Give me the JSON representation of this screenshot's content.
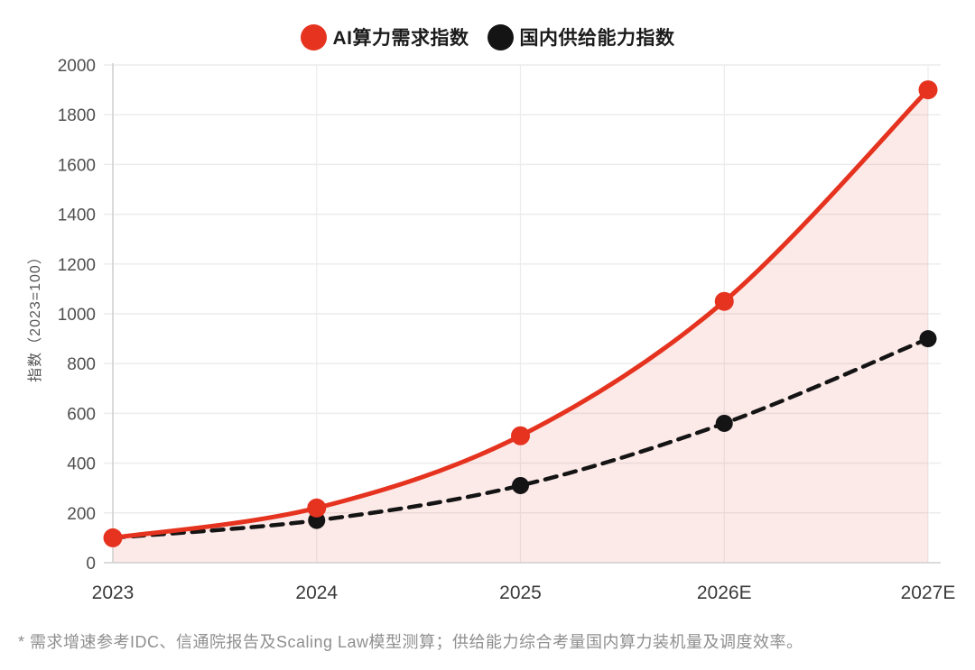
{
  "chart_data": {
    "type": "line",
    "title": "",
    "categories": [
      "2023",
      "2024",
      "2025",
      "2026E",
      "2027E"
    ],
    "series": [
      {
        "name": "AI算力需求指数",
        "values": [
          100,
          220,
          510,
          1050,
          1900
        ],
        "color": "#e5331f",
        "line_style": "solid",
        "marker": "circle",
        "area_fill": true
      },
      {
        "name": "国内供给能力指数",
        "values": [
          100,
          170,
          310,
          560,
          900
        ],
        "color": "#141414",
        "line_style": "dashed",
        "marker": "circle",
        "area_fill": false
      }
    ],
    "xlabel": "",
    "ylabel": "指数（2023=100）",
    "ylim": [
      0,
      2000
    ],
    "yticks": [
      0,
      200,
      400,
      600,
      800,
      1000,
      1200,
      1400,
      1600,
      1800,
      2000
    ],
    "grid": true,
    "legend_position": "top",
    "area_fill_color": "rgba(229, 51, 31, 0.10)"
  },
  "footnote": "* 需求增速参考IDC、信通院报告及Scaling Law模型测算；供给能力综合考量国内算力装机量及调度效率。",
  "colors": {
    "accent_red": "#e5331f",
    "series_black": "#141414",
    "gridline": "#ececec",
    "axis_line": "#cfcfcf",
    "ytick_text": "#4f4f4f",
    "xtick_text": "#3a3a3a",
    "footnote_text": "#8f8f8f"
  }
}
